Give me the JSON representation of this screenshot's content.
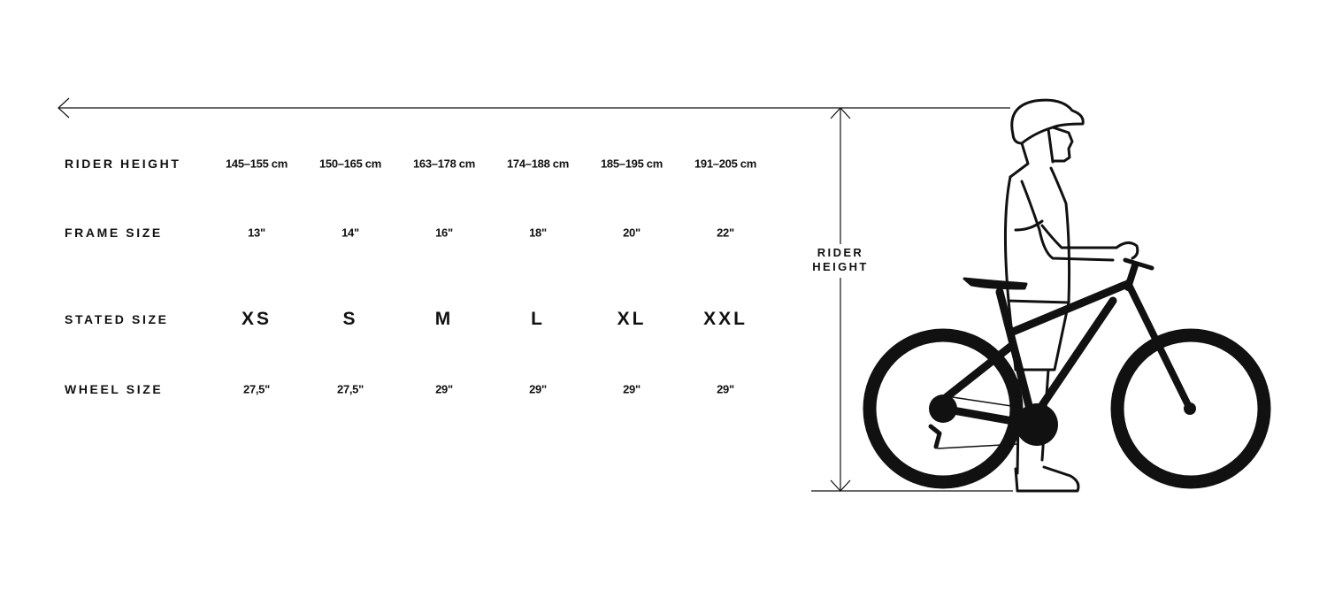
{
  "rows": [
    {
      "label": "RIDER HEIGHT",
      "values": [
        "145–155 cm",
        "150–165 cm",
        "163–178 cm",
        "174–188 cm",
        "185–195 cm",
        "191–205 cm"
      ]
    },
    {
      "label": "FRAME SIZE",
      "values": [
        "13\"",
        "14\"",
        "16\"",
        "18\"",
        "20\"",
        "22\""
      ]
    },
    {
      "label": "STATED SIZE",
      "values": [
        "XS",
        "S",
        "M",
        "L",
        "XL",
        "XXL"
      ]
    },
    {
      "label": "WHEEL SIZE",
      "values": [
        "27,5\"",
        "27,5\"",
        "29\"",
        "29\"",
        "29\"",
        "29\""
      ]
    }
  ],
  "measure_label": {
    "line1": "RIDER",
    "line2": "HEIGHT"
  },
  "illustration": "rider-standing-with-mountain-bike",
  "colors": {
    "ink": "#111111",
    "background": "#ffffff"
  }
}
